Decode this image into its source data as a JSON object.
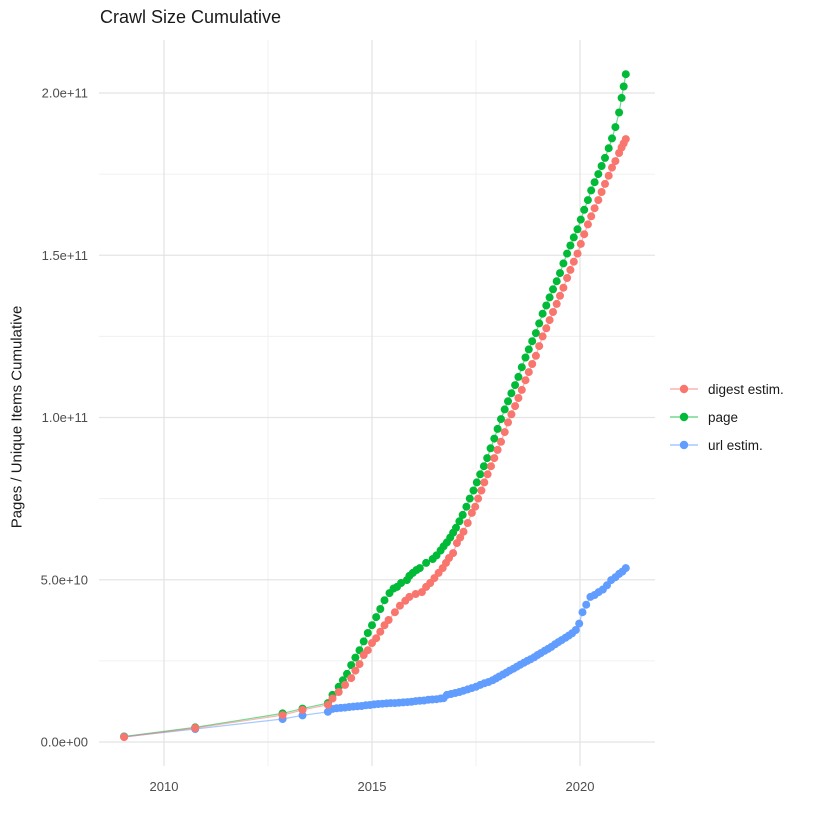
{
  "title": "Crawl Size Cumulative",
  "y_axis": {
    "label": "Pages / Unique Items Cumulative",
    "ticks": [
      {
        "value_billions": 0,
        "label": "0.0e+00"
      },
      {
        "value_billions": 50,
        "label": "5.0e+10"
      },
      {
        "value_billions": 100,
        "label": "1.0e+11"
      },
      {
        "value_billions": 150,
        "label": "1.5e+11"
      },
      {
        "value_billions": 200,
        "label": "2.0e+11"
      }
    ],
    "minor_ticks_billions": [
      25,
      75,
      125,
      175
    ]
  },
  "x_axis": {
    "ticks": [
      {
        "value_year": 2010,
        "label": "2010"
      },
      {
        "value_year": 2015,
        "label": "2015"
      },
      {
        "value_year": 2020,
        "label": "2020"
      }
    ],
    "minor_ticks_years": [
      2012.5,
      2017.5
    ]
  },
  "colors": {
    "digest_estim": "#F8766D",
    "page": "#00BA38",
    "url_estim": "#619CFF",
    "grid_major": "#e4e4e4",
    "grid_minor": "#f0f0f0",
    "text_dark": "#1a1a1a",
    "text_tick": "#4d4d4d",
    "background": "#ffffff"
  },
  "legend": {
    "position": "right-middle"
  },
  "chart_data": {
    "type": "line",
    "title": "Crawl Size Cumulative",
    "xlabel": "",
    "ylabel": "Pages / Unique Items Cumulative",
    "x_unit": "year",
    "y_unit": "count (values listed in billions, 1e9)",
    "xlim": [
      2008.45,
      2021.8
    ],
    "ylim_billions": [
      -7,
      216
    ],
    "grid": true,
    "legend_position": "right",
    "series": [
      {
        "name": "digest estim.",
        "color": "#F8766D",
        "points": [
          [
            2009.04,
            1.5
          ],
          [
            2010.75,
            4.3
          ],
          [
            2012.85,
            8.3
          ],
          [
            2013.33,
            9.9
          ],
          [
            2013.94,
            11.5
          ],
          [
            2014.05,
            13.4
          ],
          [
            2014.2,
            15.4
          ],
          [
            2014.35,
            17.6
          ],
          [
            2014.5,
            19.7
          ],
          [
            2014.6,
            22.0
          ],
          [
            2014.7,
            24.0
          ],
          [
            2014.8,
            26.8
          ],
          [
            2014.9,
            28.3
          ],
          [
            2015.0,
            30.5
          ],
          [
            2015.1,
            32.0
          ],
          [
            2015.2,
            34.0
          ],
          [
            2015.3,
            36.0
          ],
          [
            2015.4,
            37.6
          ],
          [
            2015.55,
            40.0
          ],
          [
            2015.67,
            42.0
          ],
          [
            2015.8,
            43.5
          ],
          [
            2015.9,
            44.7
          ],
          [
            2016.05,
            45.6
          ],
          [
            2016.2,
            46.2
          ],
          [
            2016.3,
            47.8
          ],
          [
            2016.4,
            49.0
          ],
          [
            2016.5,
            50.5
          ],
          [
            2016.6,
            52.1
          ],
          [
            2016.7,
            53.6
          ],
          [
            2016.78,
            55.2
          ],
          [
            2016.85,
            56.7
          ],
          [
            2016.95,
            58.2
          ],
          [
            2017.04,
            61.3
          ],
          [
            2017.12,
            63.0
          ],
          [
            2017.2,
            64.8
          ],
          [
            2017.3,
            67.5
          ],
          [
            2017.4,
            70.6
          ],
          [
            2017.48,
            72.5
          ],
          [
            2017.55,
            75.0
          ],
          [
            2017.63,
            77.5
          ],
          [
            2017.7,
            80.0
          ],
          [
            2017.78,
            82.5
          ],
          [
            2017.86,
            85.0
          ],
          [
            2017.94,
            87.5
          ],
          [
            2018.02,
            90.0
          ],
          [
            2018.1,
            92.5
          ],
          [
            2018.19,
            95.5
          ],
          [
            2018.27,
            98.5
          ],
          [
            2018.35,
            101.0
          ],
          [
            2018.44,
            103.5
          ],
          [
            2018.52,
            106.0
          ],
          [
            2018.6,
            108.5
          ],
          [
            2018.69,
            111.5
          ],
          [
            2018.77,
            114.0
          ],
          [
            2018.85,
            116.5
          ],
          [
            2018.94,
            119.0
          ],
          [
            2019.02,
            122.0
          ],
          [
            2019.1,
            125.0
          ],
          [
            2019.19,
            127.5
          ],
          [
            2019.27,
            130.0
          ],
          [
            2019.35,
            132.5
          ],
          [
            2019.44,
            135.0
          ],
          [
            2019.52,
            137.5
          ],
          [
            2019.6,
            140.0
          ],
          [
            2019.69,
            143.0
          ],
          [
            2019.77,
            145.5
          ],
          [
            2019.85,
            148.0
          ],
          [
            2019.94,
            150.5
          ],
          [
            2020.02,
            153.5
          ],
          [
            2020.1,
            156.5
          ],
          [
            2020.19,
            159.5
          ],
          [
            2020.27,
            162.0
          ],
          [
            2020.35,
            164.5
          ],
          [
            2020.44,
            167.0
          ],
          [
            2020.52,
            169.5
          ],
          [
            2020.6,
            172.0
          ],
          [
            2020.69,
            174.5
          ],
          [
            2020.77,
            177.0
          ],
          [
            2020.85,
            179.0
          ],
          [
            2020.94,
            181.5
          ],
          [
            2021.0,
            183.2
          ],
          [
            2021.05,
            184.5
          ],
          [
            2021.1,
            185.8
          ]
        ]
      },
      {
        "name": "page",
        "color": "#00BA38",
        "points": [
          [
            2009.04,
            1.7
          ],
          [
            2010.75,
            4.5
          ],
          [
            2012.85,
            8.8
          ],
          [
            2013.33,
            10.3
          ],
          [
            2013.94,
            12.0
          ],
          [
            2014.05,
            14.5
          ],
          [
            2014.2,
            17.0
          ],
          [
            2014.3,
            19.0
          ],
          [
            2014.4,
            21.0
          ],
          [
            2014.5,
            23.7
          ],
          [
            2014.6,
            26.0
          ],
          [
            2014.7,
            28.3
          ],
          [
            2014.8,
            31.0
          ],
          [
            2014.9,
            33.6
          ],
          [
            2015.0,
            36.0
          ],
          [
            2015.1,
            38.5
          ],
          [
            2015.2,
            41.0
          ],
          [
            2015.3,
            43.7
          ],
          [
            2015.42,
            45.9
          ],
          [
            2015.52,
            47.3
          ],
          [
            2015.6,
            47.8
          ],
          [
            2015.7,
            49.0
          ],
          [
            2015.84,
            49.9
          ],
          [
            2015.9,
            51.2
          ],
          [
            2015.98,
            52.1
          ],
          [
            2016.07,
            53.0
          ],
          [
            2016.15,
            53.6
          ],
          [
            2016.3,
            55.2
          ],
          [
            2016.46,
            56.4
          ],
          [
            2016.55,
            57.5
          ],
          [
            2016.65,
            59.0
          ],
          [
            2016.72,
            60.3
          ],
          [
            2016.8,
            61.5
          ],
          [
            2016.88,
            63.0
          ],
          [
            2016.95,
            64.5
          ],
          [
            2017.02,
            66.0
          ],
          [
            2017.1,
            68.0
          ],
          [
            2017.18,
            70.0
          ],
          [
            2017.27,
            72.5
          ],
          [
            2017.35,
            75.0
          ],
          [
            2017.44,
            77.5
          ],
          [
            2017.52,
            80.0
          ],
          [
            2017.6,
            82.5
          ],
          [
            2017.69,
            85.0
          ],
          [
            2017.77,
            87.5
          ],
          [
            2017.85,
            90.5
          ],
          [
            2017.94,
            93.5
          ],
          [
            2018.02,
            96.5
          ],
          [
            2018.1,
            99.5
          ],
          [
            2018.19,
            102.5
          ],
          [
            2018.27,
            105.0
          ],
          [
            2018.35,
            107.5
          ],
          [
            2018.44,
            110.0
          ],
          [
            2018.52,
            112.5
          ],
          [
            2018.6,
            115.5
          ],
          [
            2018.69,
            118.5
          ],
          [
            2018.77,
            121.0
          ],
          [
            2018.85,
            123.5
          ],
          [
            2018.94,
            126.0
          ],
          [
            2019.02,
            129.0
          ],
          [
            2019.1,
            132.0
          ],
          [
            2019.19,
            134.5
          ],
          [
            2019.27,
            137.0
          ],
          [
            2019.35,
            139.5
          ],
          [
            2019.44,
            142.0
          ],
          [
            2019.52,
            144.5
          ],
          [
            2019.6,
            147.5
          ],
          [
            2019.69,
            150.5
          ],
          [
            2019.77,
            153.0
          ],
          [
            2019.85,
            155.5
          ],
          [
            2019.94,
            158.0
          ],
          [
            2020.02,
            161.0
          ],
          [
            2020.1,
            164.0
          ],
          [
            2020.19,
            167.0
          ],
          [
            2020.27,
            170.0
          ],
          [
            2020.35,
            172.5
          ],
          [
            2020.44,
            175.0
          ],
          [
            2020.52,
            177.5
          ],
          [
            2020.6,
            180.0
          ],
          [
            2020.69,
            183.0
          ],
          [
            2020.77,
            186.0
          ],
          [
            2020.85,
            189.5
          ],
          [
            2020.94,
            194.0
          ],
          [
            2021.0,
            198.5
          ],
          [
            2021.05,
            202.0
          ],
          [
            2021.1,
            205.8
          ]
        ]
      },
      {
        "name": "url estim.",
        "color": "#619CFF",
        "points": [
          [
            2009.04,
            1.6
          ],
          [
            2010.75,
            4.0
          ],
          [
            2012.85,
            7.1
          ],
          [
            2013.33,
            8.2
          ],
          [
            2013.94,
            9.3
          ],
          [
            2014.05,
            10.2
          ],
          [
            2014.15,
            10.4
          ],
          [
            2014.25,
            10.5
          ],
          [
            2014.35,
            10.6
          ],
          [
            2014.45,
            10.8
          ],
          [
            2014.55,
            10.9
          ],
          [
            2014.65,
            11.0
          ],
          [
            2014.75,
            11.1
          ],
          [
            2014.85,
            11.3
          ],
          [
            2014.95,
            11.4
          ],
          [
            2015.05,
            11.6
          ],
          [
            2015.15,
            11.7
          ],
          [
            2015.25,
            11.8
          ],
          [
            2015.35,
            11.9
          ],
          [
            2015.45,
            12.0
          ],
          [
            2015.55,
            12.0
          ],
          [
            2015.65,
            12.1
          ],
          [
            2015.75,
            12.2
          ],
          [
            2015.85,
            12.3
          ],
          [
            2015.95,
            12.4
          ],
          [
            2016.05,
            12.6
          ],
          [
            2016.15,
            12.7
          ],
          [
            2016.25,
            12.8
          ],
          [
            2016.35,
            13.0
          ],
          [
            2016.45,
            13.1
          ],
          [
            2016.55,
            13.2
          ],
          [
            2016.65,
            13.4
          ],
          [
            2016.72,
            13.5
          ],
          [
            2016.8,
            14.5
          ],
          [
            2016.9,
            14.8
          ],
          [
            2017.0,
            15.1
          ],
          [
            2017.1,
            15.4
          ],
          [
            2017.2,
            15.8
          ],
          [
            2017.3,
            16.2
          ],
          [
            2017.4,
            16.6
          ],
          [
            2017.5,
            17.0
          ],
          [
            2017.6,
            17.6
          ],
          [
            2017.7,
            18.1
          ],
          [
            2017.8,
            18.5
          ],
          [
            2017.9,
            19.0
          ],
          [
            2017.98,
            19.6
          ],
          [
            2018.06,
            20.2
          ],
          [
            2018.15,
            20.8
          ],
          [
            2018.23,
            21.4
          ],
          [
            2018.31,
            22.0
          ],
          [
            2018.4,
            22.6
          ],
          [
            2018.48,
            23.2
          ],
          [
            2018.56,
            23.8
          ],
          [
            2018.65,
            24.4
          ],
          [
            2018.73,
            25.0
          ],
          [
            2018.81,
            25.5
          ],
          [
            2018.9,
            26.1
          ],
          [
            2018.98,
            26.8
          ],
          [
            2019.06,
            27.4
          ],
          [
            2019.15,
            28.1
          ],
          [
            2019.23,
            28.7
          ],
          [
            2019.31,
            29.3
          ],
          [
            2019.4,
            30.1
          ],
          [
            2019.48,
            30.8
          ],
          [
            2019.56,
            31.4
          ],
          [
            2019.65,
            32.1
          ],
          [
            2019.73,
            32.8
          ],
          [
            2019.81,
            33.5
          ],
          [
            2019.9,
            34.5
          ],
          [
            2019.98,
            36.5
          ],
          [
            2020.06,
            40.0
          ],
          [
            2020.15,
            42.3
          ],
          [
            2020.25,
            44.7
          ],
          [
            2020.35,
            45.3
          ],
          [
            2020.45,
            46.2
          ],
          [
            2020.55,
            47.0
          ],
          [
            2020.65,
            48.3
          ],
          [
            2020.75,
            49.9
          ],
          [
            2020.85,
            50.8
          ],
          [
            2020.94,
            51.8
          ],
          [
            2021.02,
            52.5
          ],
          [
            2021.1,
            53.6
          ]
        ]
      }
    ]
  }
}
